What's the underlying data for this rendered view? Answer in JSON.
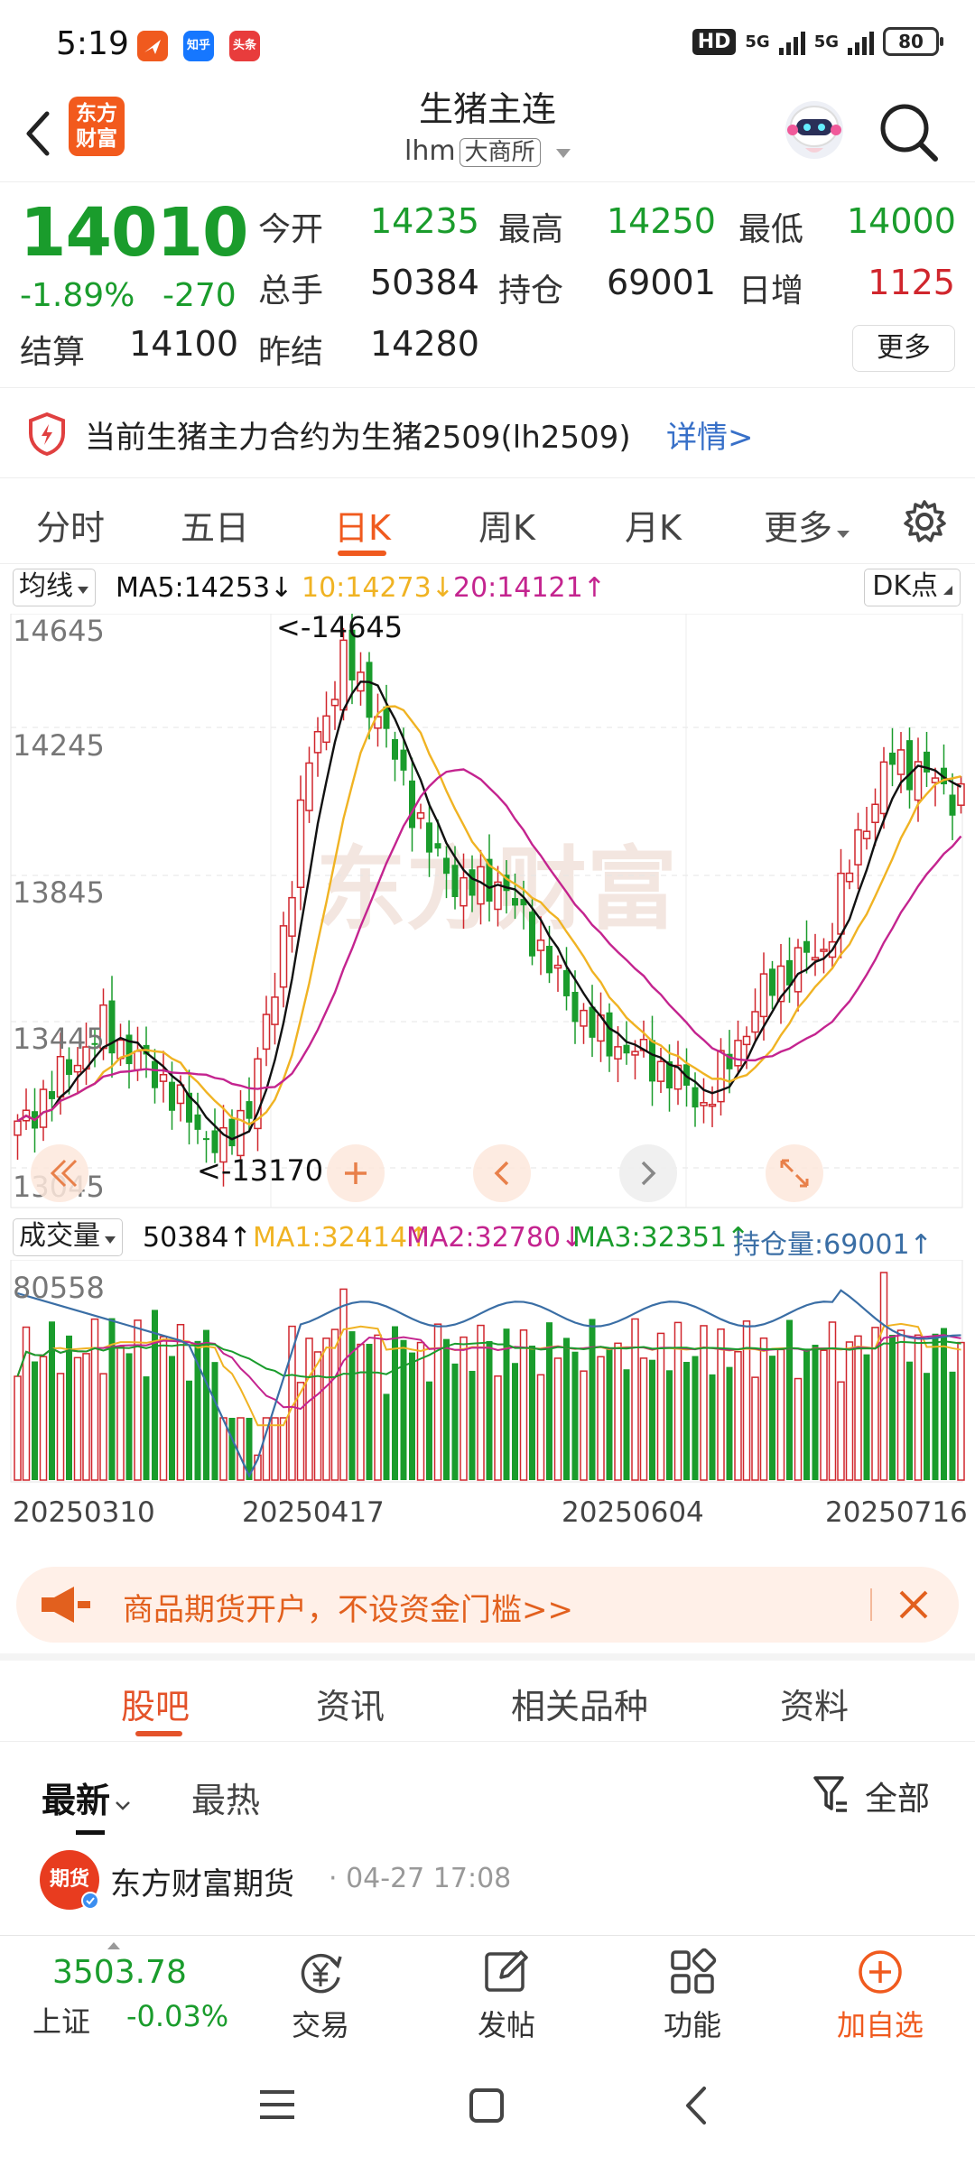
{
  "status": {
    "time": "5:19",
    "apps": [
      "arrow-app-icon",
      "zhihu-app-icon",
      "toutiao-app-icon"
    ],
    "app_labels": [
      "",
      "知乎",
      "头条"
    ],
    "hd": "HD",
    "net1": "5G",
    "net2": "5G",
    "battery": "80"
  },
  "header": {
    "logo": "东方\n财富",
    "title": "生猪主连",
    "code": "lhm",
    "exchange": "大商所"
  },
  "quote": {
    "price": "14010",
    "change_pct": "-1.89%",
    "change": "-270",
    "open_label": "今开",
    "open": "14235",
    "high_label": "最高",
    "high": "14250",
    "low_label": "最低",
    "low": "14000",
    "volume_label": "总手",
    "volume": "50384",
    "oi_label": "持仓",
    "oi": "69001",
    "daily_inc_label": "日增",
    "daily_inc": "1125",
    "settle_label": "结算",
    "settle": "14100",
    "prev_settle_label": "昨结",
    "prev_settle": "14280",
    "more": "更多"
  },
  "notice": {
    "text": "当前生猪主力合约为生猪2509(lh2509)",
    "link": "详情>"
  },
  "periods": [
    "分时",
    "五日",
    "日K",
    "周K",
    "月K",
    "更多"
  ],
  "active_period": "日K",
  "ma_bar": {
    "selector": "均线",
    "ma5": "MA5:14253",
    "ma10": "10:14273",
    "ma20": "20:14121",
    "dk": "DK点"
  },
  "kline": {
    "y_ticks": [
      "14645",
      "14245",
      "13845",
      "13445",
      "13045"
    ],
    "max_label": "<-14645",
    "min_label": "<-13170"
  },
  "vol_bar": {
    "selector": "成交量",
    "vol": "50384",
    "ma1": "MA1:32414",
    "ma2": "MA2:32780",
    "ma3": "MA3:32351",
    "oi": "持仓量:69001",
    "max": "80558"
  },
  "dates": [
    "20250310",
    "20250417",
    "20250604",
    "20250716"
  ],
  "colors": {
    "up": "#d0262d",
    "down": "#1a9c2c",
    "ma5": "#111111",
    "ma10": "#f0b323",
    "ma20": "#c4248f",
    "oi_line": "#3a6ea5",
    "vol_ma3": "#1a9c2c",
    "accent": "#f05a1e"
  },
  "promo": {
    "text": "商品期货开户，不设资金门槛>>"
  },
  "bottom_tabs": [
    "股吧",
    "资讯",
    "相关品种",
    "资料"
  ],
  "active_bottom_tab": "股吧",
  "sort": {
    "latest": "最新",
    "hot": "最热",
    "filter": "全部"
  },
  "post": {
    "avatar": "期货",
    "author": "东方财富期货",
    "time": "04-27 17:08"
  },
  "index": {
    "value": "3503.78",
    "name": "上证",
    "change": "-0.03%"
  },
  "bottom_nav": [
    {
      "label": "交易",
      "icon": "trade-icon"
    },
    {
      "label": "发帖",
      "icon": "post-icon"
    },
    {
      "label": "功能",
      "icon": "grid-icon"
    },
    {
      "label": "加自选",
      "icon": "add-watchlist-icon"
    }
  ]
}
